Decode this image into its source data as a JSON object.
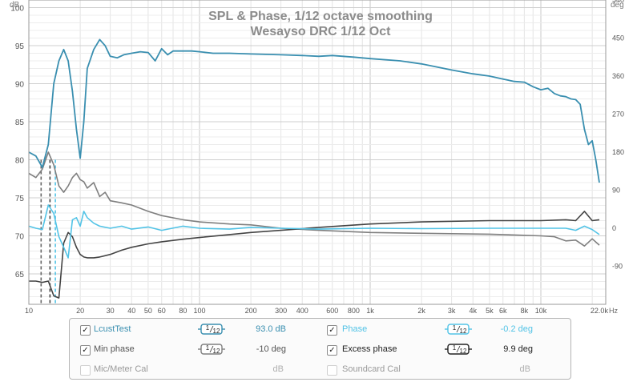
{
  "chart_data": {
    "type": "line",
    "title": "SPL & Phase, 1/12 octave smoothing",
    "subtitle": "Wesayso DRC 1/12 Oct",
    "left_axis_unit": "dB",
    "right_axis_unit": "deg",
    "x_unit": "Hz",
    "x_scale": "log",
    "xlim": [
      10,
      24000
    ],
    "ylim_left": [
      61,
      101
    ],
    "ylim_right": [
      -180,
      540
    ],
    "grid": true,
    "x_ticks": [
      {
        "v": 10,
        "label": "10"
      },
      {
        "v": 20,
        "label": "20"
      },
      {
        "v": 30,
        "label": "30"
      },
      {
        "v": 40,
        "label": "40"
      },
      {
        "v": 50,
        "label": "50"
      },
      {
        "v": 60,
        "label": "60"
      },
      {
        "v": 80,
        "label": "80"
      },
      {
        "v": 100,
        "label": "100"
      },
      {
        "v": 200,
        "label": "200"
      },
      {
        "v": 300,
        "label": "300"
      },
      {
        "v": 400,
        "label": "400"
      },
      {
        "v": 600,
        "label": "600"
      },
      {
        "v": 800,
        "label": "800"
      },
      {
        "v": 1000,
        "label": "1k"
      },
      {
        "v": 2000,
        "label": "2k"
      },
      {
        "v": 3000,
        "label": "3k"
      },
      {
        "v": 4000,
        "label": "4k"
      },
      {
        "v": 5000,
        "label": "5k"
      },
      {
        "v": 6000,
        "label": "6k"
      },
      {
        "v": 8000,
        "label": "8k"
      },
      {
        "v": 10000,
        "label": "10k"
      },
      {
        "v": 22000,
        "label": "22.0k"
      }
    ],
    "y_ticks_left": [
      65,
      70,
      75,
      80,
      85,
      90,
      95,
      100
    ],
    "y_ticks_right": [
      -90,
      0,
      90,
      180,
      270,
      360,
      450,
      540
    ],
    "series": [
      {
        "name": "LcustTest",
        "axis": "left",
        "color": "#3a8fb0",
        "x": [
          10,
          11,
          12,
          13,
          14,
          15,
          16,
          17,
          18,
          19,
          20,
          21,
          22,
          24,
          26,
          28,
          30,
          33,
          36,
          40,
          45,
          50,
          55,
          60,
          65,
          70,
          80,
          90,
          100,
          120,
          150,
          200,
          300,
          400,
          500,
          600,
          800,
          1000,
          1500,
          2000,
          3000,
          4000,
          5000,
          6000,
          7000,
          8000,
          9000,
          10000,
          11000,
          12000,
          13000,
          14000,
          15000,
          16000,
          17000,
          18000,
          19000,
          20000,
          21000,
          22000
        ],
        "y": [
          81,
          80.5,
          79,
          82,
          90,
          93,
          94.5,
          93,
          89,
          84,
          80.2,
          85,
          92,
          94.5,
          95.8,
          95,
          93.6,
          93.4,
          93.8,
          94,
          94.2,
          94.1,
          93,
          94.6,
          93.8,
          94.3,
          94.3,
          94.3,
          94.2,
          94,
          94,
          93.9,
          93.8,
          93.7,
          93.6,
          93.7,
          93.5,
          93.3,
          93,
          92.6,
          91.8,
          91.3,
          91,
          90.6,
          90.3,
          90.2,
          89.6,
          89.2,
          89.4,
          88.7,
          88.4,
          88.3,
          88,
          87.9,
          87.3,
          84,
          82,
          82.5,
          80,
          77
        ]
      },
      {
        "name": "Phase",
        "axis": "right",
        "color": "#52c3e6",
        "x": [
          10,
          11,
          12,
          13,
          14,
          15,
          16,
          17,
          18,
          19,
          20,
          21,
          22,
          24,
          26,
          30,
          35,
          40,
          50,
          60,
          80,
          100,
          150,
          200,
          300,
          500,
          1000,
          2000,
          5000,
          10000,
          14000,
          16000,
          18000,
          20000,
          22000
        ],
        "y": [
          5,
          0,
          -3,
          55,
          35,
          -20,
          -45,
          -70,
          20,
          25,
          5,
          40,
          25,
          12,
          5,
          0,
          5,
          -2,
          3,
          -5,
          5,
          0,
          -2,
          2,
          0,
          -2,
          0,
          -1,
          0,
          0,
          0,
          -5,
          5,
          -3,
          -15
        ]
      },
      {
        "name": "Min phase",
        "axis": "right",
        "color": "#7f7f7f",
        "x": [
          10,
          11,
          12,
          13,
          14,
          15,
          16,
          17,
          18,
          19,
          20,
          21,
          22,
          24,
          26,
          28,
          30,
          35,
          40,
          50,
          60,
          80,
          100,
          150,
          200,
          300,
          500,
          1000,
          2000,
          5000,
          10000,
          12000,
          14000,
          16000,
          18000,
          20000,
          22000
        ],
        "y": [
          130,
          120,
          140,
          180,
          150,
          100,
          85,
          100,
          120,
          130,
          115,
          110,
          95,
          108,
          75,
          85,
          65,
          60,
          55,
          40,
          30,
          20,
          15,
          10,
          8,
          0,
          -5,
          -10,
          -12,
          -14,
          -18,
          -20,
          -30,
          -28,
          -42,
          -25,
          -40
        ]
      },
      {
        "name": "Excess phase",
        "axis": "right",
        "color": "#444444",
        "x": [
          10,
          11,
          12,
          13,
          14,
          15,
          16,
          17,
          18,
          19,
          20,
          21,
          22,
          24,
          26,
          30,
          35,
          40,
          50,
          60,
          80,
          100,
          150,
          200,
          300,
          500,
          1000,
          2000,
          5000,
          10000,
          14000,
          16000,
          18000,
          20000,
          22000
        ],
        "y": [
          -125,
          -125,
          -128,
          -125,
          -160,
          -165,
          -35,
          -10,
          -20,
          -45,
          -62,
          -68,
          -70,
          -70,
          -68,
          -62,
          -52,
          -45,
          -37,
          -32,
          -26,
          -22,
          -15,
          -10,
          -5,
          2,
          10,
          15,
          18,
          18,
          20,
          18,
          40,
          18,
          20
        ]
      }
    ],
    "annotations": [
      {
        "x": 11.8,
        "style": "dashed",
        "color": "#666666"
      },
      {
        "x": 13.3,
        "style": "dashed",
        "color": "#444444"
      },
      {
        "x": 14.3,
        "style": "dashed",
        "color": "#52c3e6"
      }
    ]
  },
  "legend": {
    "rows": [
      {
        "left": {
          "checked": true,
          "label": "LcustTest",
          "smoothing": "1/12",
          "value": "93.0 dB",
          "color": "#3a8fb0"
        },
        "right": {
          "checked": true,
          "label": "Phase",
          "smoothing": "1/12",
          "value": "-0.2 deg",
          "color": "#52c3e6"
        }
      },
      {
        "left": {
          "checked": true,
          "label": "Min phase",
          "smoothing": "1/12",
          "value": "-10 deg",
          "color": "#7f7f7f"
        },
        "right": {
          "checked": true,
          "label": "Excess phase",
          "smoothing": "1/12",
          "value": "9.9 deg",
          "color": "#222222"
        }
      },
      {
        "left": {
          "checked": false,
          "label": "Mic/Meter Cal",
          "value": "dB"
        },
        "right": {
          "checked": false,
          "label": "Soundcard Cal",
          "value": "dB"
        }
      }
    ],
    "check_glyph": "✓"
  }
}
